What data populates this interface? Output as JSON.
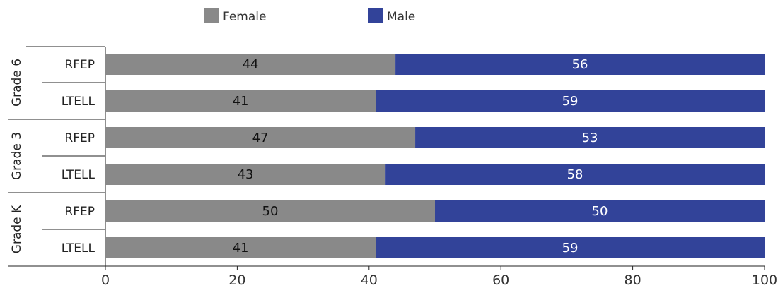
{
  "chart_data": {
    "type": "bar",
    "orientation": "horizontal",
    "stacked": true,
    "title": "",
    "xlabel": "",
    "ylabel": "",
    "xlim": [
      0,
      100
    ],
    "xticks": [
      "0",
      "20",
      "40",
      "60",
      "80",
      "100"
    ],
    "grid": false,
    "legend_position": "top",
    "groups": [
      "Grade 6",
      "Grade 3",
      "Grade K"
    ],
    "rows": [
      {
        "group": "Grade 6",
        "label": "RFEP"
      },
      {
        "group": "Grade 6",
        "label": "LTELL"
      },
      {
        "group": "Grade 3",
        "label": "RFEP"
      },
      {
        "group": "Grade 3",
        "label": "LTELL"
      },
      {
        "group": "Grade K",
        "label": "RFEP"
      },
      {
        "group": "Grade K",
        "label": "LTELL"
      }
    ],
    "series": [
      {
        "name": "Female",
        "color": "#898989",
        "label_color": "#111111",
        "values": [
          44,
          41,
          47,
          43,
          50,
          41
        ],
        "plot_values": [
          44,
          41,
          47,
          42.5,
          50,
          41
        ]
      },
      {
        "name": "Male",
        "color": "#324399",
        "label_color": "#ffffff",
        "values": [
          56,
          59,
          53,
          58,
          50,
          59
        ]
      }
    ]
  }
}
